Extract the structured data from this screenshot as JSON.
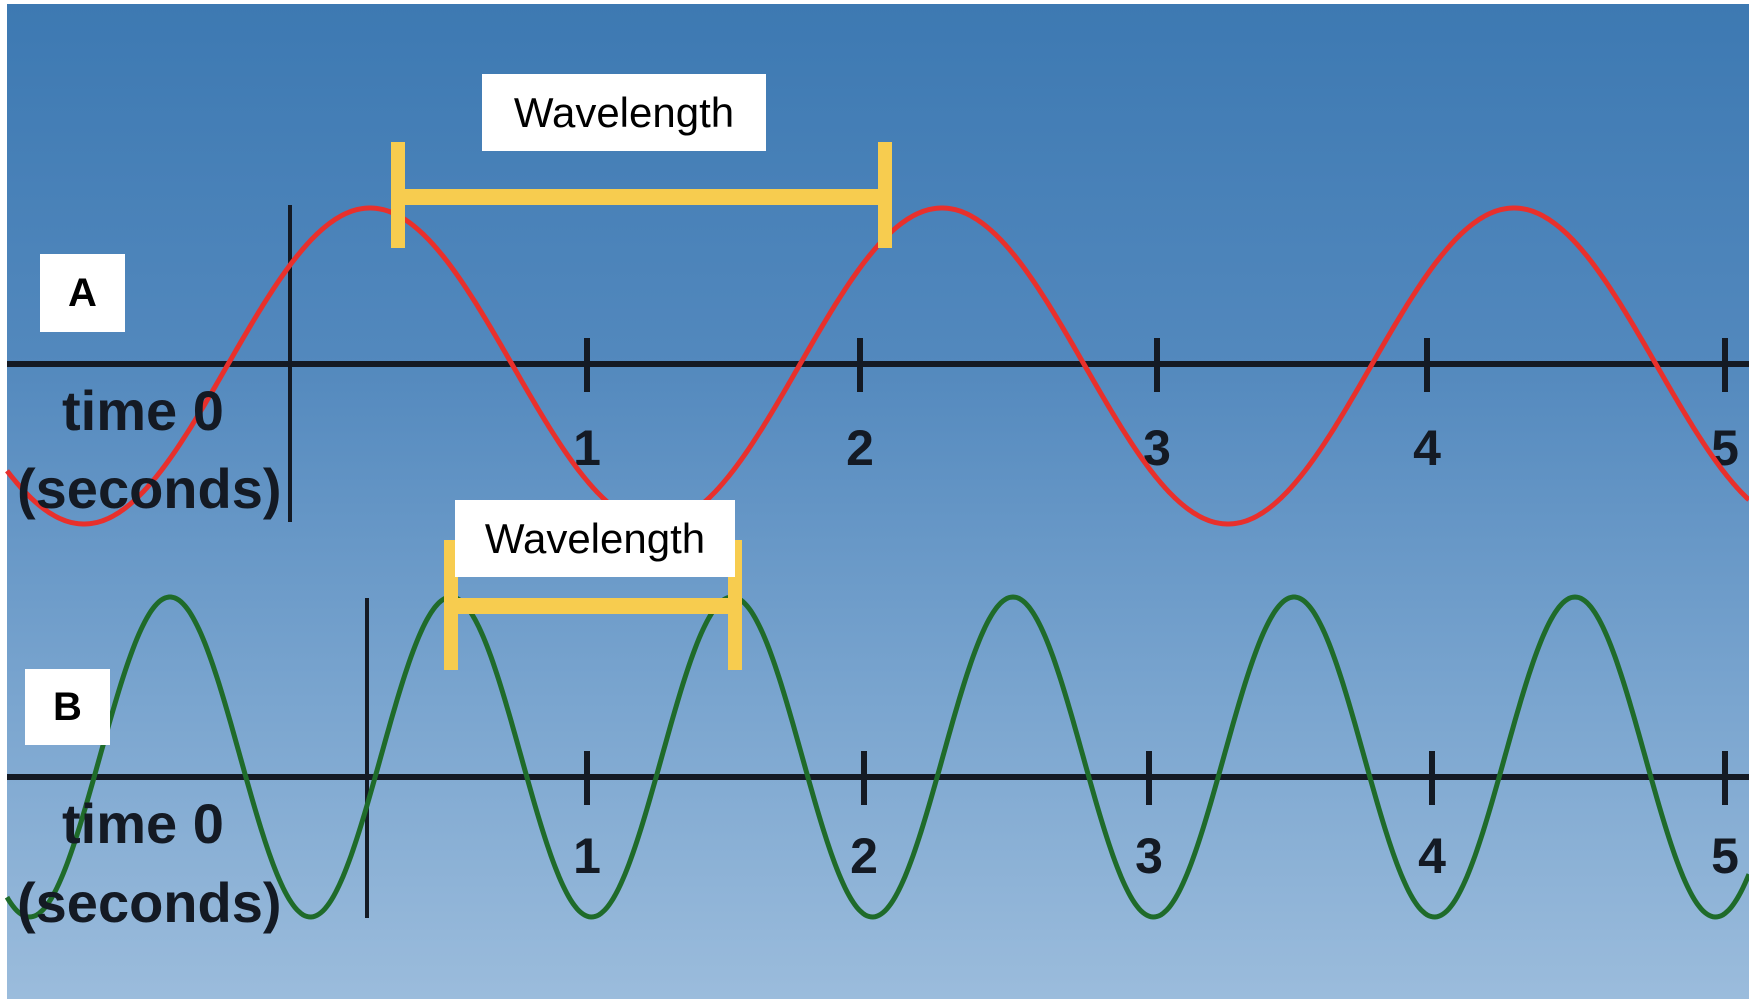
{
  "colors": {
    "wave_a": "#e8302c",
    "wave_b": "#1f6b2a",
    "bracket": "#f7cc4f",
    "axis": "#141a24"
  },
  "panel_a": {
    "label": "A",
    "wavelength_label": "Wavelength",
    "axis_label_line1": "time  0",
    "axis_label_line2": "(seconds)",
    "ticks": [
      "1",
      "2",
      "3",
      "4",
      "5"
    ]
  },
  "panel_b": {
    "label": "B",
    "wavelength_label": "Wavelength",
    "axis_label_line1": "time  0",
    "axis_label_line2": "(seconds)",
    "ticks": [
      "1",
      "2",
      "3",
      "4",
      "5"
    ]
  }
}
